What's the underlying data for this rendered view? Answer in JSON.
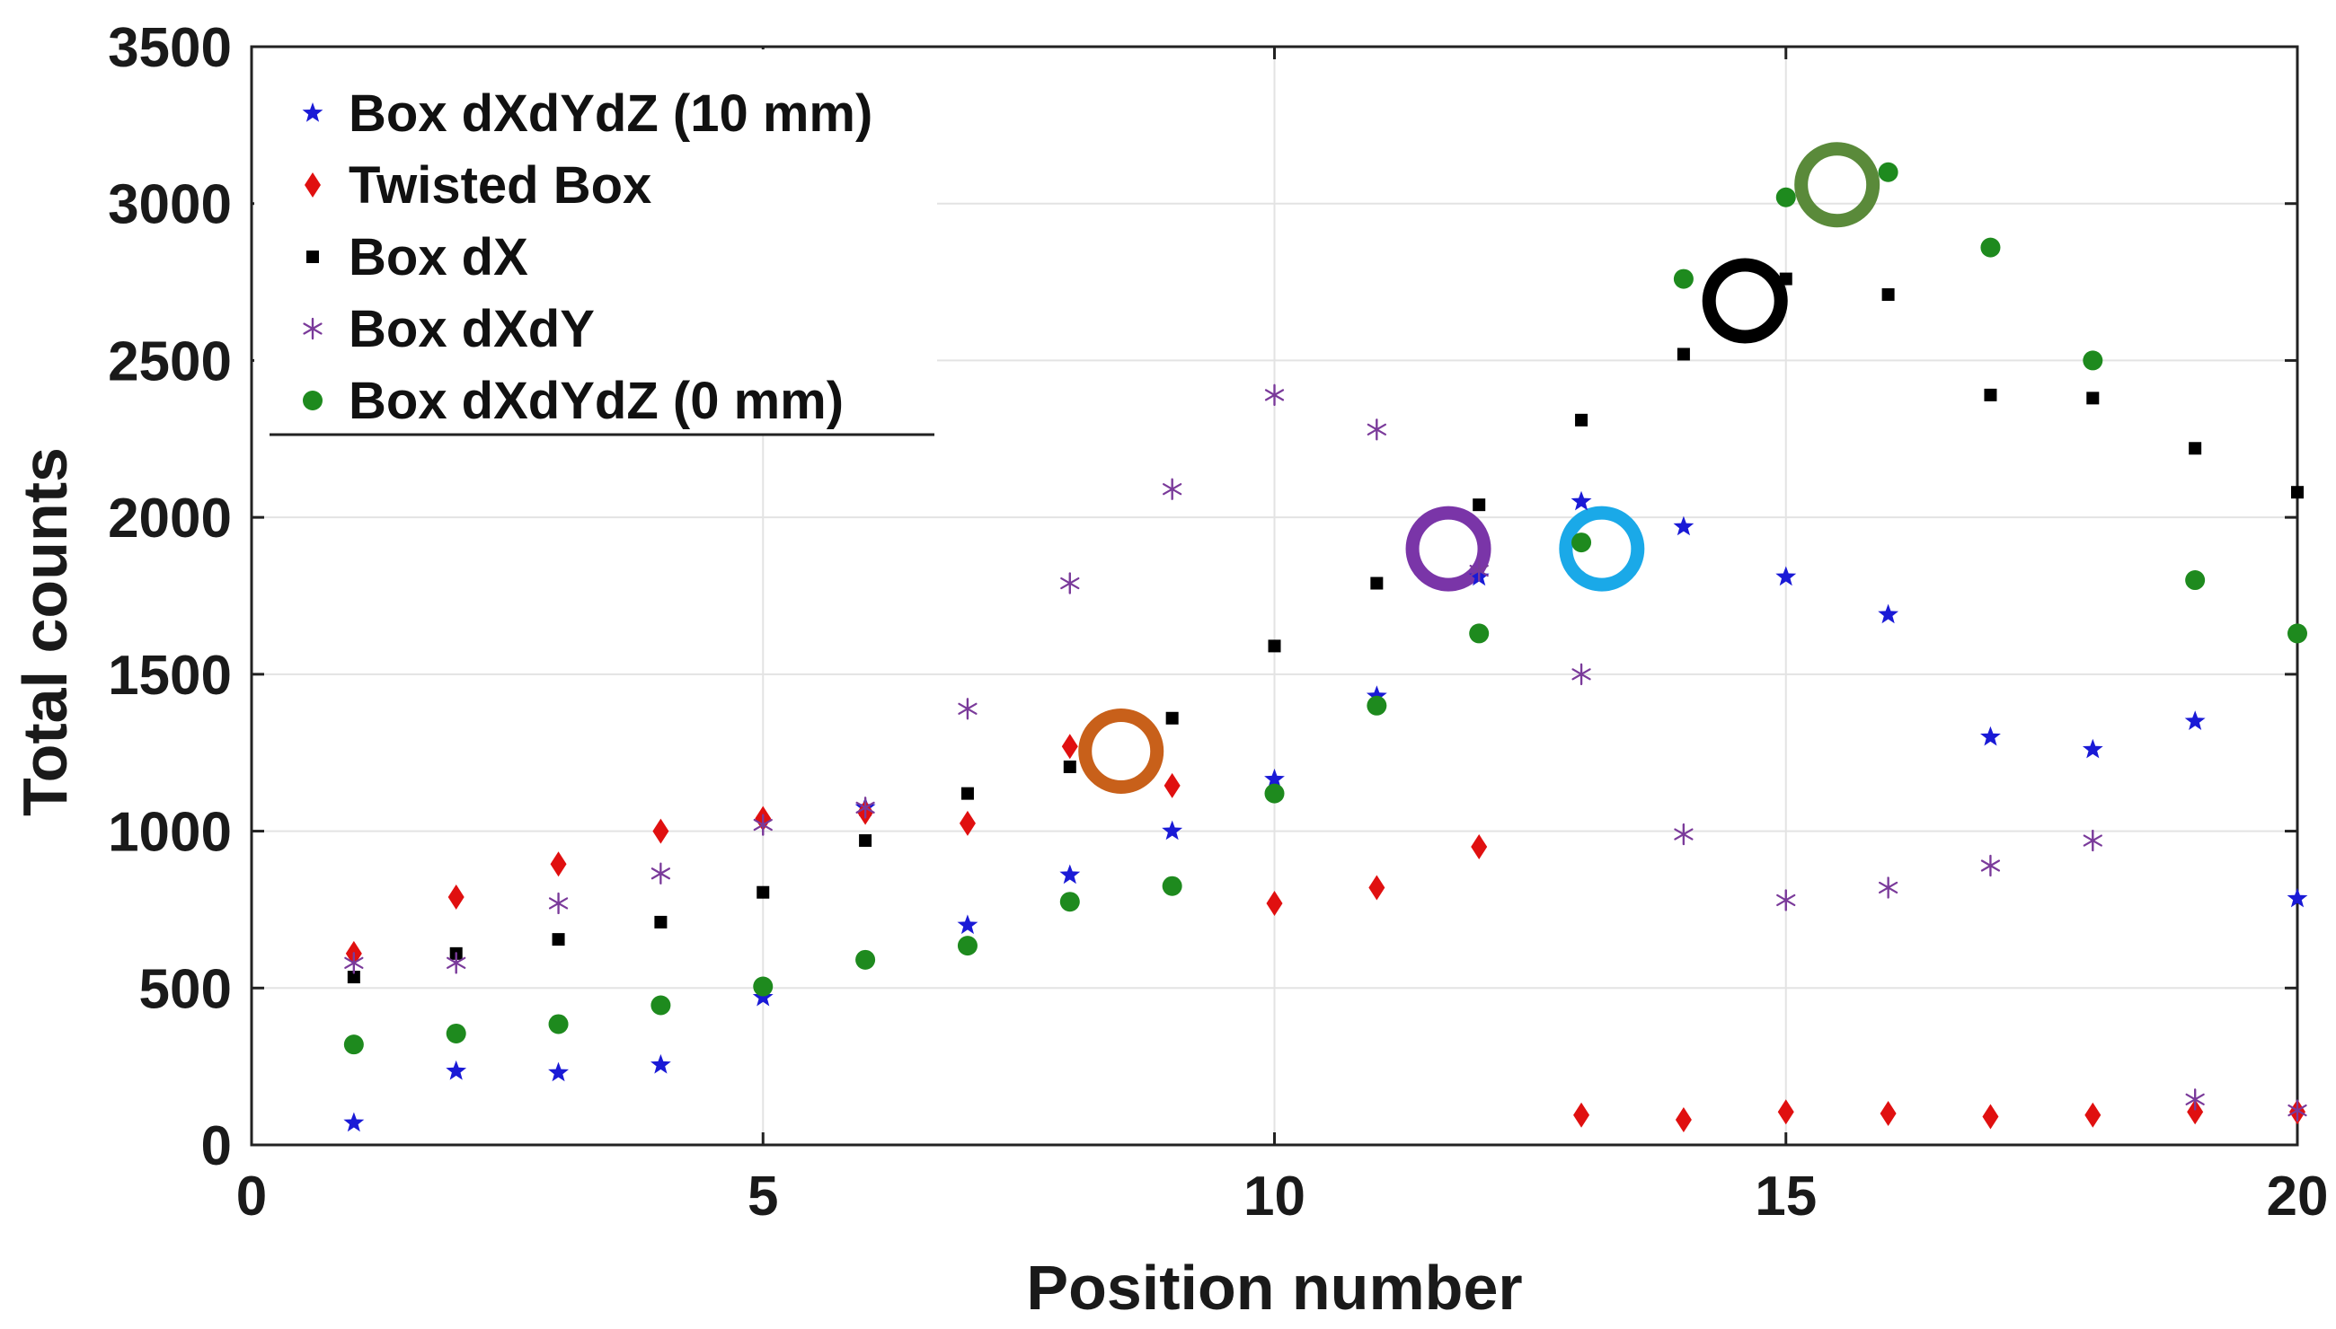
{
  "chart_data": {
    "type": "scatter",
    "title": "",
    "xlabel": "Position number",
    "ylabel": "Total counts",
    "xlim": [
      0,
      20
    ],
    "ylim": [
      0,
      3500
    ],
    "xticks": [
      0,
      5,
      10,
      15,
      20
    ],
    "yticks": [
      0,
      500,
      1000,
      1500,
      2000,
      2500,
      3000,
      3500
    ],
    "grid": true,
    "legend_position": "top-left",
    "series": [
      {
        "name": "Box dXdYdZ (10 mm)",
        "marker": "star",
        "color": "#1a1ad6",
        "x": [
          1,
          2,
          3,
          4,
          5,
          6,
          7,
          8,
          9,
          10,
          11,
          12,
          13,
          14,
          15,
          16,
          17,
          18,
          19,
          20
        ],
        "y": [
          70,
          235,
          230,
          255,
          470,
          1075,
          700,
          860,
          1000,
          1165,
          1430,
          1810,
          2050,
          1970,
          1810,
          1690,
          1300,
          1260,
          1350,
          785
        ]
      },
      {
        "name": "Twisted Box",
        "marker": "diamond",
        "color": "#e01010",
        "x": [
          1,
          2,
          3,
          4,
          5,
          6,
          7,
          8,
          9,
          10,
          11,
          12,
          13,
          14,
          15,
          16,
          17,
          18,
          19,
          20
        ],
        "y": [
          610,
          790,
          895,
          1000,
          1040,
          1060,
          1025,
          1270,
          1145,
          770,
          820,
          950,
          95,
          80,
          105,
          100,
          90,
          95,
          105,
          105
        ]
      },
      {
        "name": "Box dX",
        "marker": "square",
        "color": "#000000",
        "x": [
          1,
          2,
          3,
          4,
          5,
          6,
          7,
          8,
          9,
          10,
          11,
          12,
          13,
          14,
          15,
          16,
          17,
          18,
          19,
          20
        ],
        "y": [
          535,
          610,
          655,
          710,
          805,
          970,
          1120,
          1205,
          1360,
          1590,
          1790,
          2040,
          2310,
          2520,
          2760,
          2710,
          2390,
          2380,
          2220,
          2080
        ]
      },
      {
        "name": "Box dXdY",
        "marker": "asterisk",
        "color": "#7a3a9a",
        "x": [
          1,
          2,
          3,
          4,
          5,
          6,
          7,
          8,
          9,
          10,
          11,
          12,
          13,
          14,
          15,
          16,
          17,
          18,
          19,
          20
        ],
        "y": [
          580,
          580,
          770,
          865,
          1020,
          1075,
          1390,
          1790,
          2090,
          2390,
          2280,
          1830,
          1500,
          990,
          780,
          820,
          890,
          970,
          145,
          110
        ]
      },
      {
        "name": "Box dXdYdZ (0 mm)",
        "marker": "circle",
        "color": "#1e8a1e",
        "x": [
          1,
          2,
          3,
          4,
          5,
          6,
          7,
          8,
          9,
          10,
          11,
          12,
          13,
          14,
          15,
          16,
          17,
          18,
          19,
          20
        ],
        "y": [
          320,
          355,
          385,
          445,
          505,
          590,
          635,
          775,
          825,
          1120,
          1400,
          1630,
          1920,
          2760,
          3020,
          3100,
          2860,
          2500,
          1800,
          1630
        ]
      }
    ],
    "annotations": [
      {
        "type": "ring",
        "x": 8.5,
        "y": 1255,
        "color": "#c8601a"
      },
      {
        "type": "ring",
        "x": 11.7,
        "y": 1900,
        "color": "#7a35a8"
      },
      {
        "type": "ring",
        "x": 13.2,
        "y": 1900,
        "color": "#1aa9e8"
      },
      {
        "type": "ring",
        "x": 14.6,
        "y": 2690,
        "color": "#000000"
      },
      {
        "type": "ring",
        "x": 15.5,
        "y": 3060,
        "color": "#5a8a3a"
      }
    ]
  }
}
